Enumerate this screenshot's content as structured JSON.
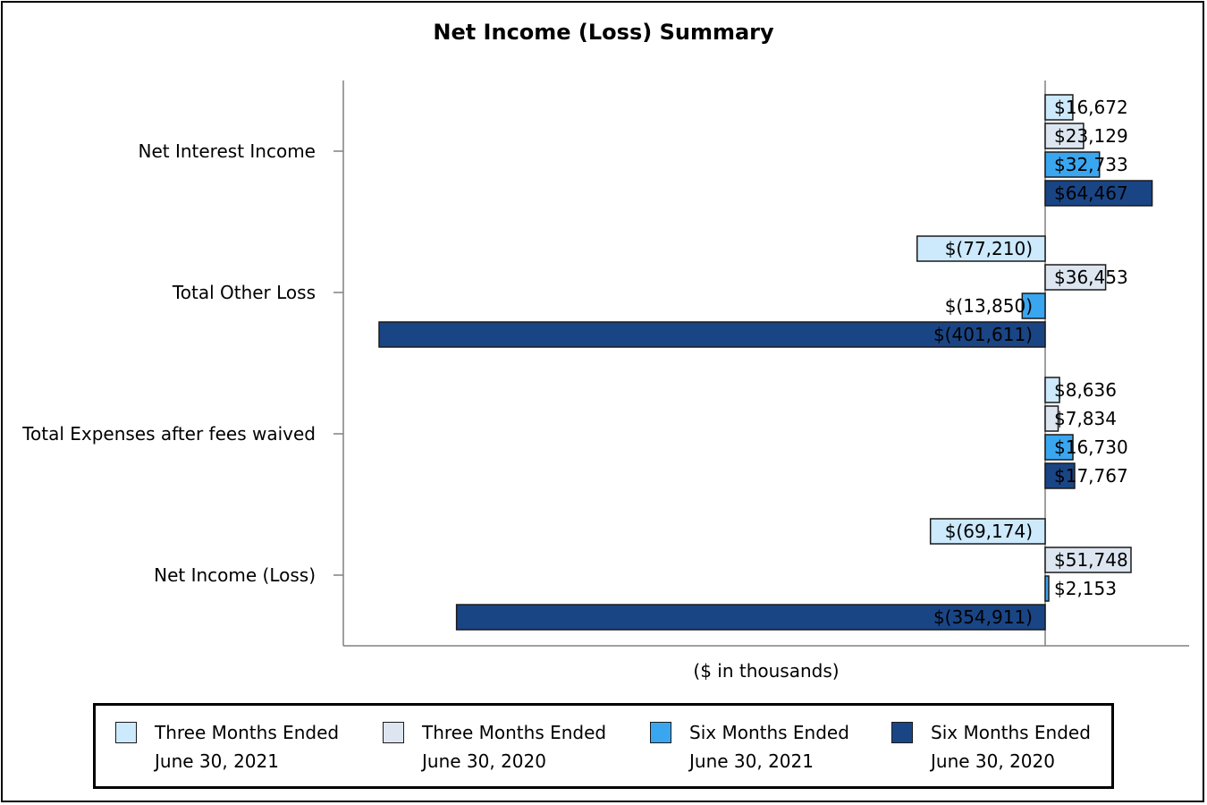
{
  "chart_data": {
    "type": "bar",
    "orientation": "horizontal",
    "title": "Net Income (Loss) Summary",
    "xlabel": "($ in thousands)",
    "ylabel": "",
    "categories": [
      "Net Interest Income",
      "Total Other Loss",
      "Total Expenses after fees waived",
      "Net Income (Loss)"
    ],
    "xlim": [
      -480000,
      90000
    ],
    "grid": false,
    "legend_position": "bottom",
    "series": [
      {
        "name_line1": "Three Months Ended",
        "name_line2": "June 30, 2021",
        "color": "#cde9fc",
        "values": [
          16672,
          -77210,
          8636,
          -69174
        ],
        "labels": [
          "$16,672",
          "$(77,210)",
          "$8,636",
          "$(69,174)"
        ]
      },
      {
        "name_line1": "Three Months Ended",
        "name_line2": "June 30, 2020",
        "color": "#dde6f0",
        "values": [
          23129,
          36453,
          7834,
          51748
        ],
        "labels": [
          "$23,129",
          "$36,453",
          "$7,834",
          "$51,748"
        ]
      },
      {
        "name_line1": "Six Months Ended",
        "name_line2": "June 30, 2021",
        "color": "#3aa6f0",
        "values": [
          32733,
          -13850,
          16730,
          2153
        ],
        "labels": [
          "$32,733",
          "$(13,850)",
          "$16,730",
          "$2,153"
        ]
      },
      {
        "name_line1": "Six Months Ended",
        "name_line2": "June 30, 2020",
        "color": "#1a4585",
        "values": [
          64467,
          -401611,
          17767,
          -354911
        ],
        "labels": [
          "$64,467",
          "$(401,611)",
          "$17,767",
          "$(354,911)"
        ]
      }
    ]
  }
}
